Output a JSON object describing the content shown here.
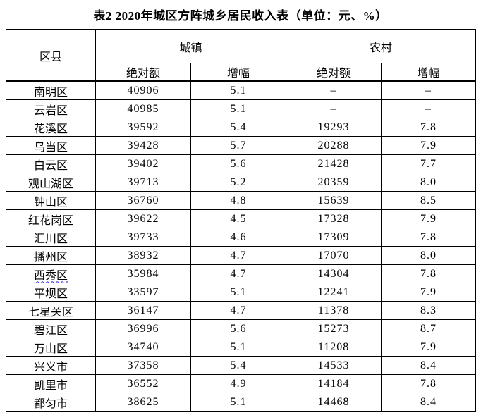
{
  "title": "表2 2020年城区方阵城乡居民收入表（单位：元、%）",
  "colors": {
    "text": "#000000",
    "border": "#000000",
    "background": "#ffffff",
    "spellcheck_squiggle": "#3232f0"
  },
  "table": {
    "headers": {
      "district": "区县",
      "urban_group": "城镇",
      "rural_group": "农村",
      "absolute": "绝对额",
      "growth": "增幅"
    },
    "missing_value_mark": "–",
    "rows": [
      {
        "district": "南明区",
        "urban_abs": "40906",
        "urban_growth": "5.1",
        "rural_abs": "–",
        "rural_growth": "–"
      },
      {
        "district": "云岩区",
        "urban_abs": "40985",
        "urban_growth": "5.1",
        "rural_abs": "–",
        "rural_growth": "–"
      },
      {
        "district": "花溪区",
        "urban_abs": "39592",
        "urban_growth": "5.4",
        "rural_abs": "19293",
        "rural_growth": "7.8"
      },
      {
        "district": "乌当区",
        "urban_abs": "39428",
        "urban_growth": "5.7",
        "rural_abs": "20288",
        "rural_growth": "7.9"
      },
      {
        "district": "白云区",
        "urban_abs": "39402",
        "urban_growth": "5.6",
        "rural_abs": "21428",
        "rural_growth": "7.7"
      },
      {
        "district": "观山湖区",
        "urban_abs": "39713",
        "urban_growth": "5.2",
        "rural_abs": "20359",
        "rural_growth": "8.0"
      },
      {
        "district": "钟山区",
        "urban_abs": "36760",
        "urban_growth": "4.8",
        "rural_abs": "15639",
        "rural_growth": "8.5"
      },
      {
        "district": "红花岗区",
        "urban_abs": "39622",
        "urban_growth": "4.5",
        "rural_abs": "17328",
        "rural_growth": "7.9"
      },
      {
        "district": "汇川区",
        "urban_abs": "39733",
        "urban_growth": "4.6",
        "rural_abs": "17309",
        "rural_growth": "7.8"
      },
      {
        "district": "播州区",
        "urban_abs": "38932",
        "urban_growth": "4.7",
        "rural_abs": "17070",
        "rural_growth": "8.0"
      },
      {
        "district": "西秀区",
        "urban_abs": "35984",
        "urban_growth": "4.7",
        "rural_abs": "14304",
        "rural_growth": "7.8",
        "spell_underline": true
      },
      {
        "district": "平坝区",
        "urban_abs": "33597",
        "urban_growth": "5.1",
        "rural_abs": "12241",
        "rural_growth": "7.9"
      },
      {
        "district": "七星关区",
        "urban_abs": "36147",
        "urban_growth": "4.7",
        "rural_abs": "11378",
        "rural_growth": "8.3"
      },
      {
        "district": "碧江区",
        "urban_abs": "36996",
        "urban_growth": "5.6",
        "rural_abs": "15273",
        "rural_growth": "8.7"
      },
      {
        "district": "万山区",
        "urban_abs": "34740",
        "urban_growth": "5.1",
        "rural_abs": "11208",
        "rural_growth": "7.9"
      },
      {
        "district": "兴义市",
        "urban_abs": "37358",
        "urban_growth": "5.4",
        "rural_abs": "14533",
        "rural_growth": "8.4"
      },
      {
        "district": "凯里市",
        "urban_abs": "36552",
        "urban_growth": "4.9",
        "rural_abs": "14184",
        "rural_growth": "7.8"
      },
      {
        "district": "都匀市",
        "urban_abs": "38625",
        "urban_growth": "5.1",
        "rural_abs": "14468",
        "rural_growth": "8.4"
      }
    ]
  }
}
